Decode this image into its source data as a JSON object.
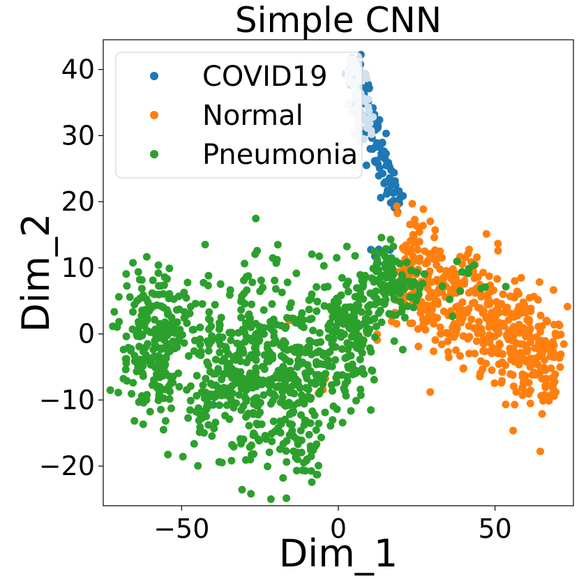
{
  "chart_data": {
    "type": "scatter",
    "title": "Simple CNN",
    "xlabel": "Dim_1",
    "ylabel": "Dim_2",
    "xlim": [
      -75,
      75
    ],
    "ylim": [
      -26,
      44.5
    ],
    "xticks": [
      -50,
      0,
      50
    ],
    "xtick_labels": [
      "−50",
      "0",
      "50"
    ],
    "yticks": [
      -20,
      -10,
      0,
      10,
      20,
      30,
      40
    ],
    "ytick_labels": [
      "−20",
      "−10",
      "0",
      "10",
      "20",
      "30",
      "40"
    ],
    "grid": false,
    "legend_position": "top-left",
    "series": [
      {
        "name": "COVID19",
        "color": "#1f77b4",
        "clusters": [
          {
            "kind": "line",
            "from": [
              4,
              41.5
            ],
            "to": [
              20,
              17.5
            ],
            "spread": 1.6,
            "n": 110
          },
          {
            "kind": "blob",
            "center": [
              13,
              11.5
            ],
            "sd": [
              1.5,
              1.2
            ],
            "n": 6
          },
          {
            "kind": "blob",
            "center": [
              -40,
              -10.8
            ],
            "sd": [
              0.2,
              0.2
            ],
            "n": 1
          }
        ]
      },
      {
        "name": "Normal",
        "color": "#ff7f0e",
        "clusters": [
          {
            "kind": "line",
            "from": [
              20,
              11
            ],
            "to": [
              70,
              -6
            ],
            "spread": 4.5,
            "n": 520
          },
          {
            "kind": "blob",
            "center": [
              19,
              18.5
            ],
            "sd": [
              0.4,
              0.4
            ],
            "n": 2
          },
          {
            "kind": "blob",
            "center": [
              -5,
              -8
            ],
            "sd": [
              0.8,
              1.2
            ],
            "n": 3
          },
          {
            "kind": "blob",
            "center": [
              -17,
              2
            ],
            "sd": [
              1,
              1
            ],
            "n": 2
          },
          {
            "kind": "blob",
            "center": [
              10,
              -0.5
            ],
            "sd": [
              1.5,
              1.2
            ],
            "n": 4
          }
        ]
      },
      {
        "name": "Pneumonia",
        "color": "#2ca02c",
        "clusters": [
          {
            "kind": "blob",
            "center": [
              -58,
              -1
            ],
            "sd": [
              6.5,
              5.5
            ],
            "n": 240
          },
          {
            "kind": "blob",
            "center": [
              -33,
              -5
            ],
            "sd": [
              8,
              7
            ],
            "n": 300
          },
          {
            "kind": "blob",
            "center": [
              -14,
              -6
            ],
            "sd": [
              7,
              7.5
            ],
            "n": 230
          },
          {
            "kind": "blob",
            "center": [
              3,
              0
            ],
            "sd": [
              4.5,
              5
            ],
            "n": 150
          },
          {
            "kind": "blob",
            "center": [
              15,
              8
            ],
            "sd": [
              5,
              3
            ],
            "n": 120
          },
          {
            "kind": "blob",
            "center": [
              40,
              8
            ],
            "sd": [
              4,
              2
            ],
            "n": 12
          },
          {
            "kind": "blob",
            "center": [
              -10,
              -18
            ],
            "sd": [
              3,
              2.5
            ],
            "n": 25
          }
        ]
      },
      {
        "name": "COVID19 (faded)",
        "color": "#cfe0ee",
        "legend": false,
        "clusters": [
          {
            "kind": "line",
            "from": [
              4,
              41.5
            ],
            "to": [
              9,
              30
            ],
            "spread": 1.5,
            "n": 65
          }
        ]
      }
    ]
  }
}
